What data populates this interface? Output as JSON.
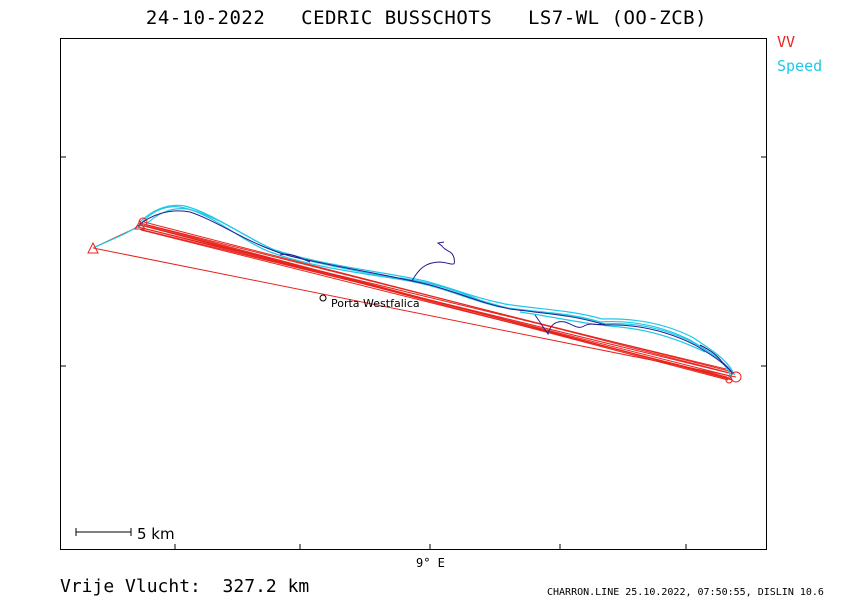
{
  "title": "24-10-2022   CEDRIC BUSSCHOTS   LS7-WL (OO-ZCB)",
  "legend": {
    "vv_label": "VV",
    "speed_label": "Speed",
    "vv_color": "#e8231c",
    "speed_color": "#1ec8e8",
    "track_color": "#2a1a8c"
  },
  "map": {
    "x_tick_label": "9° E",
    "waypoint_label": "Porta Westfalica",
    "scale_label": "5 km"
  },
  "footer": {
    "distance": "Vrije Vlucht:  327.2 km",
    "credits": "CHARRON.LINE 25.10.2022, 07:50:55, DISLIN 10.6"
  }
}
